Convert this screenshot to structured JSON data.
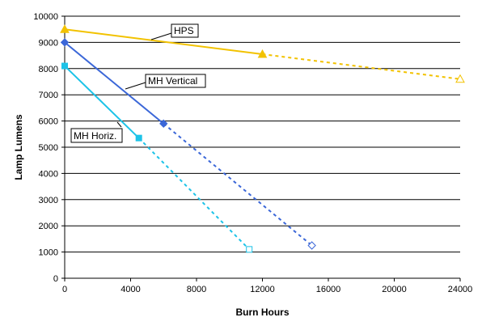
{
  "chart_data": {
    "type": "line",
    "xlabel": "Burn Hours",
    "ylabel": "Lamp Lumens",
    "xlim": [
      0,
      24000
    ],
    "ylim": [
      0,
      10000
    ],
    "x_ticks": [
      0,
      4000,
      8000,
      12000,
      16000,
      20000,
      24000
    ],
    "y_ticks": [
      0,
      1000,
      2000,
      3000,
      4000,
      5000,
      6000,
      7000,
      8000,
      9000,
      10000
    ],
    "grid": "horizontal",
    "series": [
      {
        "name": "HPS",
        "color": "#f2c200",
        "marker": "triangle",
        "measured": [
          [
            0,
            9500
          ],
          [
            12000,
            8550
          ]
        ],
        "projected": [
          [
            12000,
            8550
          ],
          [
            24000,
            7600
          ]
        ]
      },
      {
        "name": "MH Vertical",
        "color": "#3b67d8",
        "marker": "diamond",
        "measured": [
          [
            0,
            9000
          ],
          [
            6000,
            5900
          ]
        ],
        "projected": [
          [
            6000,
            5900
          ],
          [
            15000,
            1250
          ]
        ]
      },
      {
        "name": "MH Horiz.",
        "color": "#1cc3e8",
        "marker": "square",
        "measured": [
          [
            0,
            8100
          ],
          [
            4500,
            5350
          ]
        ],
        "projected": [
          [
            4500,
            5350
          ],
          [
            11200,
            1100
          ]
        ]
      }
    ]
  }
}
